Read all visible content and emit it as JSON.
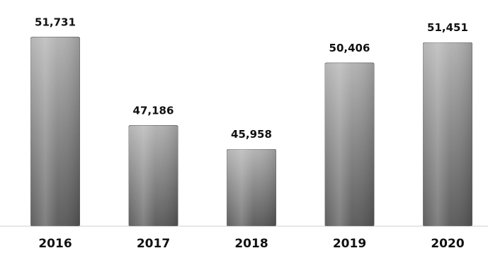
{
  "chart_data": {
    "type": "bar",
    "categories": [
      "2016",
      "2017",
      "2018",
      "2019",
      "2020"
    ],
    "values": [
      51731,
      47186,
      45958,
      50406,
      51451
    ],
    "value_labels": [
      "51,731",
      "47,186",
      "45,958",
      "50,406",
      "51,451"
    ],
    "title": "",
    "xlabel": "",
    "ylabel": "",
    "ylim": [
      42000,
      52000
    ],
    "grid": false,
    "legend": "none",
    "colors": {
      "bar_light": "#b8b8b8",
      "bar_dark": "#5a5a5a",
      "bar_edge": "#7a7a7a",
      "baseline": "#cfcfcf",
      "text": "#111111"
    }
  }
}
